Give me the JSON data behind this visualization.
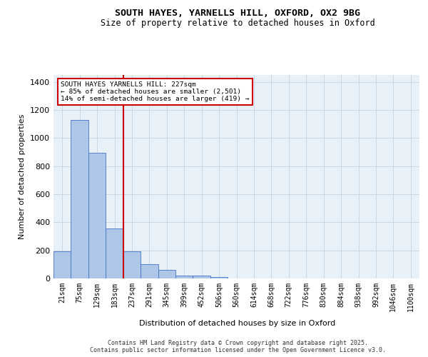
{
  "title_line1": "SOUTH HAYES, YARNELLS HILL, OXFORD, OX2 9BG",
  "title_line2": "Size of property relative to detached houses in Oxford",
  "xlabel": "Distribution of detached houses by size in Oxford",
  "ylabel": "Number of detached properties",
  "categories": [
    "21sqm",
    "75sqm",
    "129sqm",
    "183sqm",
    "237sqm",
    "291sqm",
    "345sqm",
    "399sqm",
    "452sqm",
    "506sqm",
    "560sqm",
    "614sqm",
    "668sqm",
    "722sqm",
    "776sqm",
    "830sqm",
    "884sqm",
    "938sqm",
    "992sqm",
    "1046sqm",
    "1100sqm"
  ],
  "values": [
    195,
    1130,
    895,
    355,
    195,
    100,
    62,
    20,
    18,
    12,
    0,
    0,
    0,
    0,
    0,
    0,
    0,
    0,
    0,
    0,
    0
  ],
  "bar_color": "#aec6e8",
  "bar_edge_color": "#4472c4",
  "vline_index": 3,
  "annotation_text_line1": "SOUTH HAYES YARNELLS HILL: 227sqm",
  "annotation_text_line2": "← 85% of detached houses are smaller (2,501)",
  "annotation_text_line3": "14% of semi-detached houses are larger (419) →",
  "ylim": [
    0,
    1450
  ],
  "yticks": [
    0,
    200,
    400,
    600,
    800,
    1000,
    1200,
    1400
  ],
  "grid_color": "#c8d8e8",
  "bg_color": "#e8f0f8",
  "vline_color": "#cc0000",
  "ann_box_edge": "#cc0000",
  "footer_line1": "Contains HM Land Registry data © Crown copyright and database right 2025.",
  "footer_line2": "Contains public sector information licensed under the Open Government Licence v3.0."
}
